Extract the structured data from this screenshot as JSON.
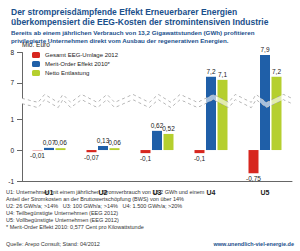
{
  "chart_data": {
    "type": "bar",
    "title": "Der strompreisdämpfende Effekt Erneuerbarer Energien überkompensiert die EEG-Kosten der stromintensiven Industrie",
    "subtitle": "Bereits ab einem jährlichen Verbrauch von 13,2 Gigawattstunden (GWh) profitieren privilegierte Unternehmen direkt vom Ausbau der regenerativen Energien.",
    "y_label": "Mio. Euro",
    "categories": [
      "U1",
      "U2",
      "U3",
      "U4",
      "U5"
    ],
    "series": [
      {
        "name": "Gesamt EEG-Umlage 2012",
        "color": "#d7261e",
        "values": [
          -0.01,
          -0.07,
          -0.1,
          -0.1,
          -0.75
        ],
        "value_labels": [
          "-0,01",
          "-0,07",
          "-0,1",
          "-0,1",
          "-0,75"
        ]
      },
      {
        "name": "Merit-Order Effekt 2010*",
        "color": "#1f5fa8",
        "values": [
          0.07,
          0.13,
          0.62,
          7.2,
          7.9
        ],
        "value_labels": [
          "0,07",
          "0,13",
          "0,62",
          "7,2",
          "7,9"
        ]
      },
      {
        "name": "Netto Entlastung",
        "color": "#b5cf2e",
        "values": [
          0.06,
          0.06,
          0.52,
          7.1,
          7.2
        ],
        "value_labels": [
          "0,06",
          "0,06",
          "0,52",
          "7,1",
          "7,2"
        ]
      }
    ],
    "ylim": [
      -1,
      8
    ],
    "yticks": [
      -1,
      0,
      1,
      7,
      8
    ],
    "ybreak": [
      1.5,
      6.5
    ],
    "grid": false,
    "legend": "upper left",
    "data_labels": true,
    "notes": [
      "U1: Unternehmen mit einem jährlichen Stromverbrauch von 13,2 GWh und einem",
      "Anteil der Stromkosten an der Bruttowertschöpfung (BWS) von über 14%",
      "U2: 26 GWh/a; >14%   U3: 100 GWh/a; >14%   U4: 1.500 GWh/a; >20%",
      "U4: Teilbegünstigte Unternehmen (EEG 2012)",
      "U5: Vollbegünstigte Unternehmen (EEG 2012)",
      "* Merit-Order Effekt 2010: 0,577 Cent pro Kilowattstunde"
    ],
    "source": "Quelle: Arepo Consult; Stand: 04/2012",
    "url": "www.unendlich-viel-energie.de"
  }
}
